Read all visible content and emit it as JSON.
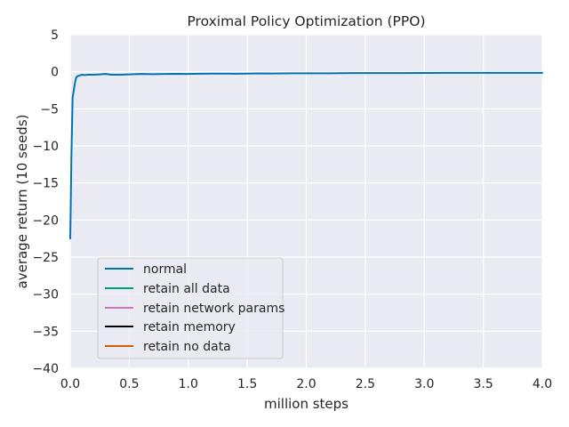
{
  "chart_data": {
    "type": "line",
    "title": "Proximal Policy Optimization (PPO)",
    "xlabel": "million steps",
    "ylabel": "average return (10 seeds)",
    "xlim": [
      0,
      4.0
    ],
    "ylim": [
      -40,
      5
    ],
    "xticks": [
      0.0,
      0.5,
      1.0,
      1.5,
      2.0,
      2.5,
      3.0,
      3.5,
      4.0
    ],
    "xtick_labels": [
      "0.0",
      "0.5",
      "1.0",
      "1.5",
      "2.0",
      "2.5",
      "3.0",
      "3.5",
      "4.0"
    ],
    "yticks": [
      5,
      0,
      -5,
      -10,
      -15,
      -20,
      -25,
      -30,
      -35,
      -40
    ],
    "ytick_labels": [
      "5",
      "0",
      "−5",
      "−10",
      "−15",
      "−20",
      "−25",
      "−30",
      "−35",
      "−40"
    ],
    "grid": true,
    "legend_position": "lower-left",
    "series": [
      {
        "name": "normal",
        "color": "#0173b2",
        "x": [
          0.0,
          0.005,
          0.01,
          0.015,
          0.02,
          0.03,
          0.04,
          0.05,
          0.06,
          0.08,
          0.1,
          0.12,
          0.15,
          0.2,
          0.25,
          0.3,
          0.35,
          0.4,
          0.45,
          0.5,
          0.6,
          0.7,
          0.8,
          0.9,
          1.0,
          1.1,
          1.2,
          1.3,
          1.4,
          1.5,
          1.6,
          1.7,
          1.8,
          1.9,
          2.0,
          2.2,
          2.4,
          2.6,
          2.8,
          3.0,
          3.2,
          3.4,
          3.6,
          3.8,
          4.0
        ],
        "values": [
          -22.5,
          -17.0,
          -11.5,
          -7.5,
          -3.5,
          -2.5,
          -1.5,
          -0.8,
          -0.6,
          -0.5,
          -0.4,
          -0.45,
          -0.4,
          -0.4,
          -0.35,
          -0.3,
          -0.4,
          -0.4,
          -0.38,
          -0.35,
          -0.3,
          -0.32,
          -0.3,
          -0.28,
          -0.3,
          -0.27,
          -0.25,
          -0.25,
          -0.27,
          -0.25,
          -0.22,
          -0.24,
          -0.22,
          -0.2,
          -0.2,
          -0.2,
          -0.18,
          -0.18,
          -0.17,
          -0.16,
          -0.15,
          -0.15,
          -0.15,
          -0.15,
          -0.14
        ]
      },
      {
        "name": "retain all data",
        "color": "#029e73",
        "x": [],
        "values": []
      },
      {
        "name": "retain network params",
        "color": "#cc78bc",
        "x": [],
        "values": []
      },
      {
        "name": "retain memory",
        "color": "#000000",
        "x": [],
        "values": []
      },
      {
        "name": "retain no data",
        "color": "#d55e00",
        "x": [],
        "values": []
      }
    ]
  }
}
